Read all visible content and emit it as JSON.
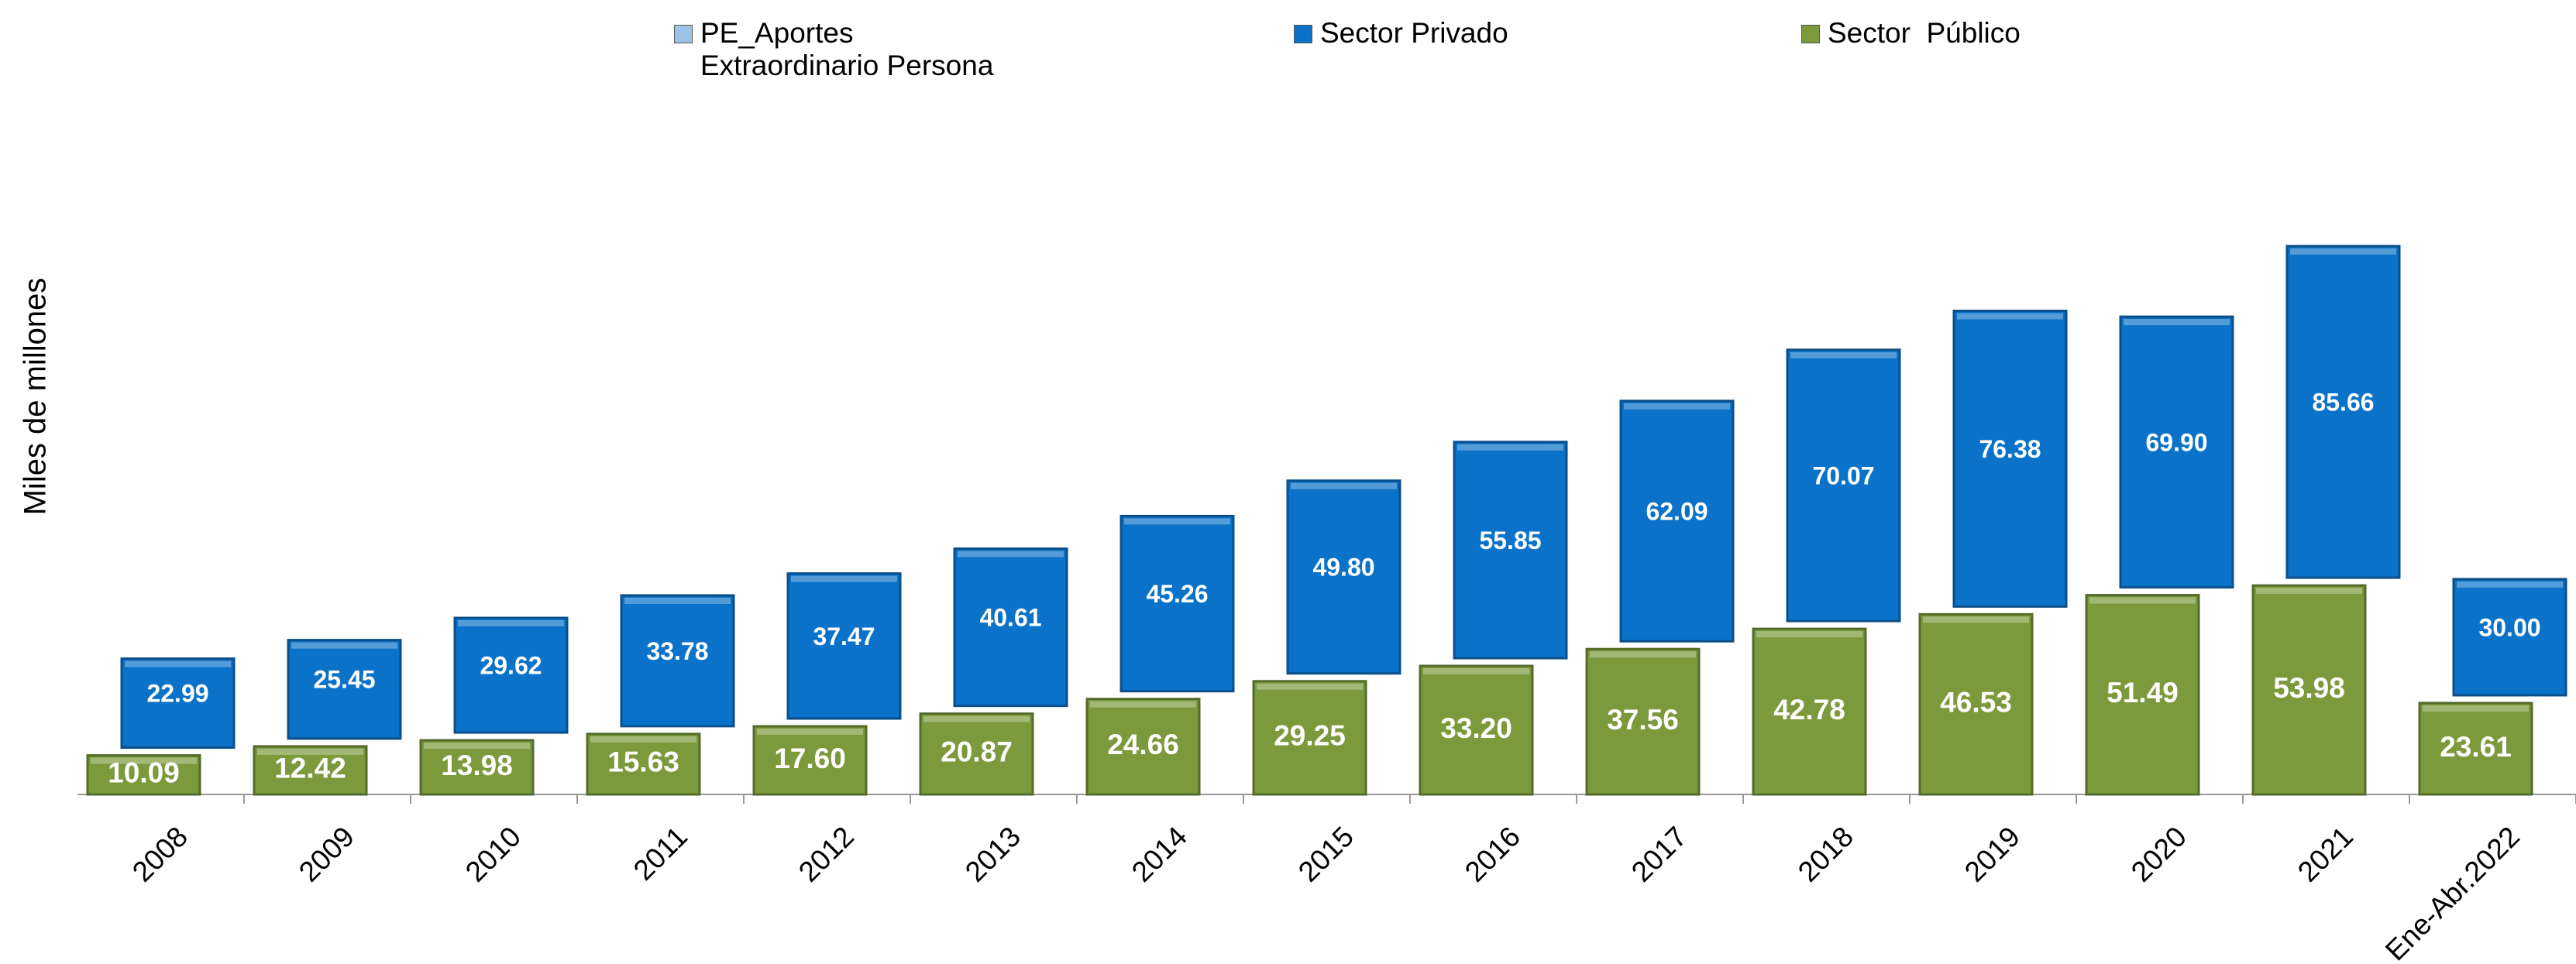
{
  "chart_data": {
    "type": "bar",
    "stacked": true,
    "y_label": "Miles de millones",
    "categories": [
      "2008",
      "2009",
      "2010",
      "2011",
      "2012",
      "2013",
      "2014",
      "2015",
      "2016",
      "2017",
      "2018",
      "2019",
      "2020",
      "2021",
      "Ene-Abr.2022"
    ],
    "series": [
      {
        "name": "PE_Aportes Extraordinario Persona",
        "color": "#9dc3e6",
        "values": [
          null,
          null,
          null,
          null,
          null,
          null,
          null,
          null,
          null,
          null,
          null,
          null,
          null,
          null,
          null
        ]
      },
      {
        "name": "Sector Privado",
        "color": "#0a72c8",
        "values": [
          22.99,
          25.45,
          29.62,
          33.78,
          37.47,
          40.61,
          45.26,
          49.8,
          55.85,
          62.09,
          70.07,
          76.38,
          69.9,
          85.66,
          30.0
        ],
        "value_labels": [
          "22.99",
          "25.45",
          "29.62",
          "33.78",
          "37.47",
          "40.61",
          "45.26",
          "49.80",
          "55.85",
          "62.09",
          "70.07",
          "76.38",
          "69.90",
          "85.66",
          "30.00"
        ]
      },
      {
        "name": "Sector  Público",
        "color": "#7a9a3c",
        "values": [
          10.09,
          12.42,
          13.98,
          15.63,
          17.6,
          20.87,
          24.66,
          29.25,
          33.2,
          37.56,
          42.78,
          46.53,
          51.49,
          53.98,
          23.61
        ],
        "value_labels": [
          "10.09",
          "12.42",
          "13.98",
          "15.63",
          "17.60",
          "20.87",
          "24.66",
          "29.25",
          "33.20",
          "37.56",
          "42.78",
          "46.53",
          "51.49",
          "53.98",
          "23.61"
        ]
      }
    ],
    "legend": "top"
  }
}
